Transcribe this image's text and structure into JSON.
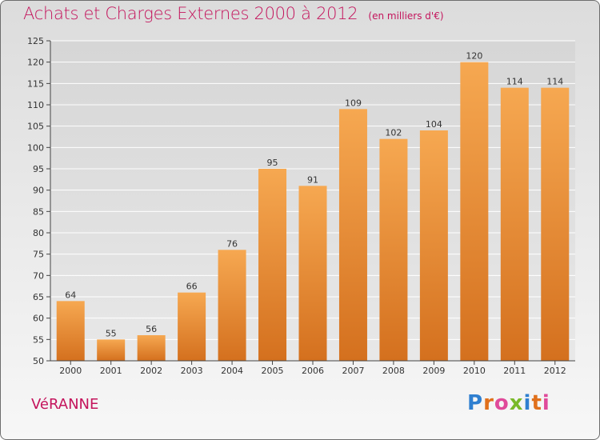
{
  "header": {
    "title": "Achats et Charges Externes 2000 à 2012",
    "unit": "(en milliers d'€)"
  },
  "footer": {
    "commune": "VéRANNE",
    "brand_letters": [
      "P",
      "r",
      "o",
      "x",
      "i",
      "t",
      "i"
    ]
  },
  "colors": {
    "title": "#c4145c",
    "bar_top": "#f6a851",
    "bar_bottom": "#d4701e",
    "grid": "#ffffff"
  },
  "chart_data": {
    "type": "bar",
    "title": "Achats et Charges Externes 2000 à 2012",
    "subtitle": "(en milliers d'€)",
    "categories": [
      "2000",
      "2001",
      "2002",
      "2003",
      "2004",
      "2005",
      "2006",
      "2007",
      "2008",
      "2009",
      "2010",
      "2011",
      "2012"
    ],
    "values": [
      64,
      55,
      56,
      66,
      76,
      95,
      91,
      109,
      102,
      104,
      120,
      114,
      114
    ],
    "ylim": [
      50,
      125
    ],
    "yticks": [
      50,
      55,
      60,
      65,
      70,
      75,
      80,
      85,
      90,
      95,
      100,
      105,
      110,
      115,
      120,
      125
    ],
    "grid": true,
    "xlabel": "",
    "ylabel": ""
  }
}
